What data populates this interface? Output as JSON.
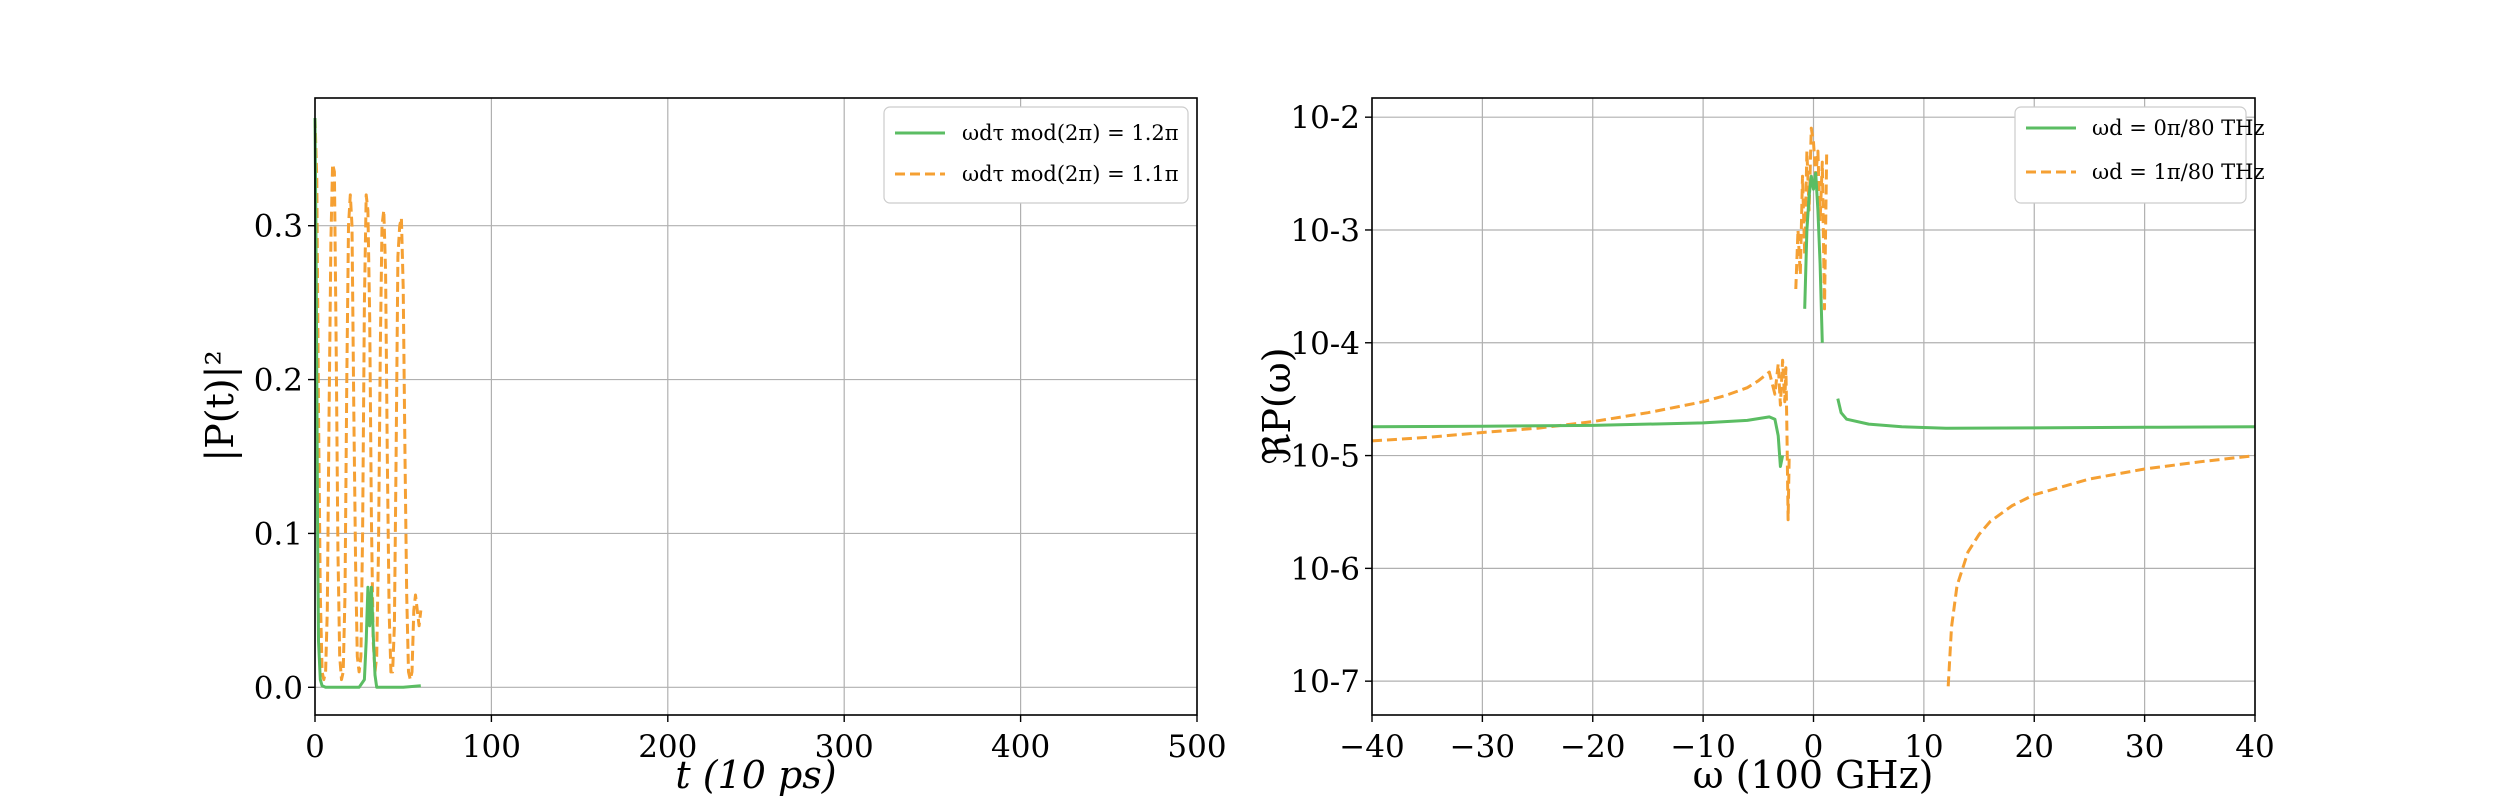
{
  "colors": {
    "green": "#5bbd63",
    "orange": "#f5a033",
    "grid": "#b0b0b0"
  },
  "chart_data": [
    {
      "type": "line",
      "xlabel": "t (10 ps)",
      "ylabel": "|P(t)|²",
      "xlim": [
        0,
        500
      ],
      "ylim": [
        -0.018,
        0.383
      ],
      "xticks": [
        "0",
        "100",
        "200",
        "300",
        "400",
        "500"
      ],
      "yticks": [
        "0.0",
        "0.1",
        "0.2",
        "0.3"
      ],
      "grid": true,
      "legend_position": "top-right",
      "series": [
        {
          "name": "ωdτ mod(2π) = 1.2π",
          "style": "solid",
          "color": "#5bbd63",
          "x": [
            0,
            0.5,
            1,
            1.5,
            2,
            3,
            4,
            6,
            10,
            15,
            20,
            25,
            28,
            29,
            30,
            31,
            32,
            33,
            34,
            35,
            40,
            50,
            60
          ],
          "y": [
            0.37,
            0.3,
            0.2,
            0.1,
            0.03,
            0.005,
            0.001,
            0.0,
            0.0,
            0.0,
            0.0,
            0.0,
            0.005,
            0.03,
            0.065,
            0.04,
            0.065,
            0.035,
            0.008,
            0.0,
            0.0,
            0.0,
            0.001
          ]
        },
        {
          "name": "ωdτ mod(2π) = 1.1π",
          "style": "dashed",
          "color": "#f5a033",
          "x": [
            0,
            1,
            2,
            3,
            4,
            5,
            6,
            7,
            8,
            9,
            10,
            11,
            12,
            13,
            14,
            15,
            16,
            17,
            18,
            19,
            20,
            21,
            22,
            23,
            24,
            25,
            26,
            27,
            28,
            29,
            30,
            31,
            32,
            33,
            34,
            35,
            36,
            37,
            38,
            39,
            40,
            41,
            42,
            43,
            44,
            45,
            46,
            47,
            48,
            49,
            50,
            51,
            52,
            53,
            54,
            55,
            56,
            57,
            58,
            59,
            60
          ],
          "y": [
            0.37,
            0.33,
            0.18,
            0.06,
            0.01,
            0.005,
            0.01,
            0.05,
            0.18,
            0.29,
            0.34,
            0.335,
            0.22,
            0.09,
            0.02,
            0.005,
            0.01,
            0.06,
            0.2,
            0.3,
            0.32,
            0.3,
            0.18,
            0.08,
            0.02,
            0.01,
            0.02,
            0.1,
            0.25,
            0.32,
            0.31,
            0.24,
            0.11,
            0.03,
            0.01,
            0.02,
            0.09,
            0.22,
            0.3,
            0.31,
            0.27,
            0.15,
            0.05,
            0.01,
            0.01,
            0.04,
            0.15,
            0.28,
            0.3,
            0.305,
            0.26,
            0.15,
            0.06,
            0.01,
            0.005,
            0.01,
            0.05,
            0.06,
            0.05,
            0.04,
            0.05
          ]
        }
      ]
    },
    {
      "type": "line",
      "xlabel": "ω (100 GHz)",
      "ylabel": "ℜP(ω)",
      "xlim": [
        -40,
        40
      ],
      "ylim_log10": [
        -7.3,
        -1.83
      ],
      "yscale": "log",
      "xticks": [
        "−40",
        "−30",
        "−20",
        "−10",
        "0",
        "10",
        "20",
        "30",
        "40"
      ],
      "yticks": [
        "10-7",
        "10-6",
        "10-5",
        "10-4",
        "10-3",
        "10-2"
      ],
      "grid": true,
      "legend_position": "top-right",
      "series": [
        {
          "name": "ωd = 0π/80 THz",
          "style": "solid",
          "color": "#5bbd63",
          "segments": [
            {
              "x": [
                -40,
                -30,
                -20,
                -10,
                -6,
                -4,
                -3.5,
                -3.2,
                -3.0,
                -2.8
              ],
              "y": [
                1.8e-05,
                1.82e-05,
                1.85e-05,
                1.95e-05,
                2.05e-05,
                2.2e-05,
                2.1e-05,
                1.5e-05,
                8e-06,
                1e-05
              ]
            },
            {
              "x": [
                -0.8,
                -0.6,
                -0.4,
                -0.2,
                0,
                0.2,
                0.4,
                0.6,
                0.8
              ],
              "y": [
                0.0002,
                0.001,
                0.002,
                0.003,
                0.0023,
                0.0032,
                0.0015,
                0.0005,
                0.0001
              ]
            },
            {
              "x": [
                2.2,
                2.5,
                3,
                5,
                8,
                12,
                20,
                30,
                40
              ],
              "y": [
                3.2e-05,
                2.4e-05,
                2.1e-05,
                1.9e-05,
                1.8e-05,
                1.75e-05,
                1.76e-05,
                1.78e-05,
                1.8e-05
              ]
            }
          ]
        },
        {
          "name": "ωd = 1π/80 THz",
          "style": "dashed",
          "color": "#f5a033",
          "segments": [
            {
              "x": [
                -40,
                -35,
                -30,
                -25,
                -20,
                -15,
                -10,
                -8,
                -6,
                -5,
                -4,
                -3.5,
                -3.2,
                -3.0,
                -2.8,
                -2.6,
                -2.5,
                -2.4,
                -2.3,
                -2.2
              ],
              "y": [
                1.35e-05,
                1.45e-05,
                1.6e-05,
                1.75e-05,
                2e-05,
                2.4e-05,
                3e-05,
                3.4e-05,
                4e-05,
                4.6e-05,
                5.5e-05,
                3.5e-05,
                6.5e-05,
                2.8e-05,
                7e-05,
                3e-05,
                6e-05,
                1.5e-05,
                2.7e-06,
                1e-05
              ]
            },
            {
              "x": [
                -1.6,
                -1.4,
                -1.2,
                -1.0,
                -0.8,
                -0.6,
                -0.4,
                -0.2,
                0,
                0.2,
                0.4,
                0.6,
                0.8,
                1.0,
                1.2
              ],
              "y": [
                0.0003,
                0.001,
                0.0004,
                0.003,
                0.0006,
                0.005,
                0.0015,
                0.008,
                0.006,
                0.003,
                0.005,
                0.0012,
                0.004,
                0.0002,
                0.005
              ]
            },
            {
              "x": [
                12.2,
                12.5,
                13,
                14,
                15,
                16,
                18,
                20,
                25,
                30,
                35,
                40
              ],
              "y": [
                9e-08,
                3e-07,
                7e-07,
                1.4e-06,
                2e-06,
                2.6e-06,
                3.6e-06,
                4.5e-06,
                6.2e-06,
                7.6e-06,
                8.8e-06,
                1e-05
              ]
            }
          ]
        }
      ]
    }
  ]
}
